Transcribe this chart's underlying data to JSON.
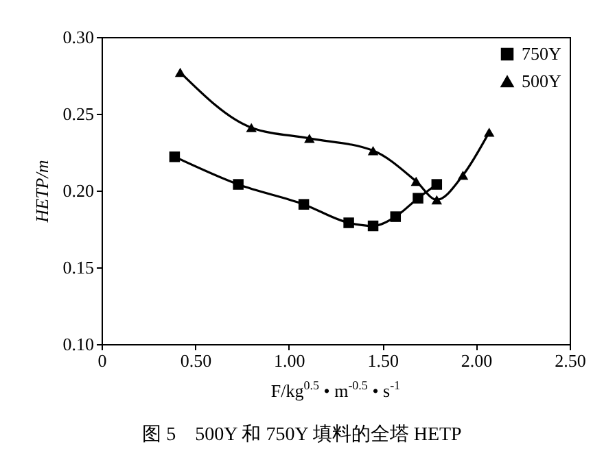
{
  "chart_data": {
    "type": "line",
    "title": "图 5　500Y 和 750Y 填料的全塔 HETP",
    "xlabel": "F/kg$^{0.5}$ • m$^{-0.5}$ • s$^{-1}$",
    "ylabel": "HETP/m",
    "xlim": [
      0,
      2.5
    ],
    "xticks": [
      0,
      {
        "value": 0.5,
        "label": "0.50"
      },
      {
        "value": 1,
        "label": "1.00"
      },
      {
        "value": 1.5,
        "label": "1.50"
      },
      {
        "value": 2,
        "label": "2.00"
      },
      {
        "value": 2.5,
        "label": "2.50"
      }
    ],
    "ylim": [
      0.1,
      0.3
    ],
    "yticks": [
      {
        "value": 0.1,
        "label": "0.10"
      },
      {
        "value": 0.15,
        "label": "0.15"
      },
      {
        "value": 0.2,
        "label": "0.20"
      },
      {
        "value": 0.25,
        "label": "0.25"
      },
      {
        "value": 0.3,
        "label": "0.30"
      }
    ],
    "grid": false,
    "legend": "top right",
    "line_style": "solid",
    "series": [
      {
        "name": "750Y",
        "color": "#000000",
        "marker": "square",
        "x": [
          0.39,
          0.73,
          1.08,
          1.32,
          1.45,
          1.57,
          1.69,
          1.79
        ],
        "values": [
          0.222,
          0.204,
          0.191,
          0.179,
          0.177,
          0.183,
          0.195,
          0.204
        ]
      },
      {
        "name": "500Y",
        "color": "#000000",
        "marker": "triangle",
        "x": [
          0.42,
          0.8,
          1.11,
          1.45,
          1.68,
          1.79,
          1.93,
          2.07
        ],
        "values": [
          0.277,
          0.241,
          0.234,
          0.226,
          0.206,
          0.194,
          0.21,
          0.238
        ]
      }
    ]
  }
}
